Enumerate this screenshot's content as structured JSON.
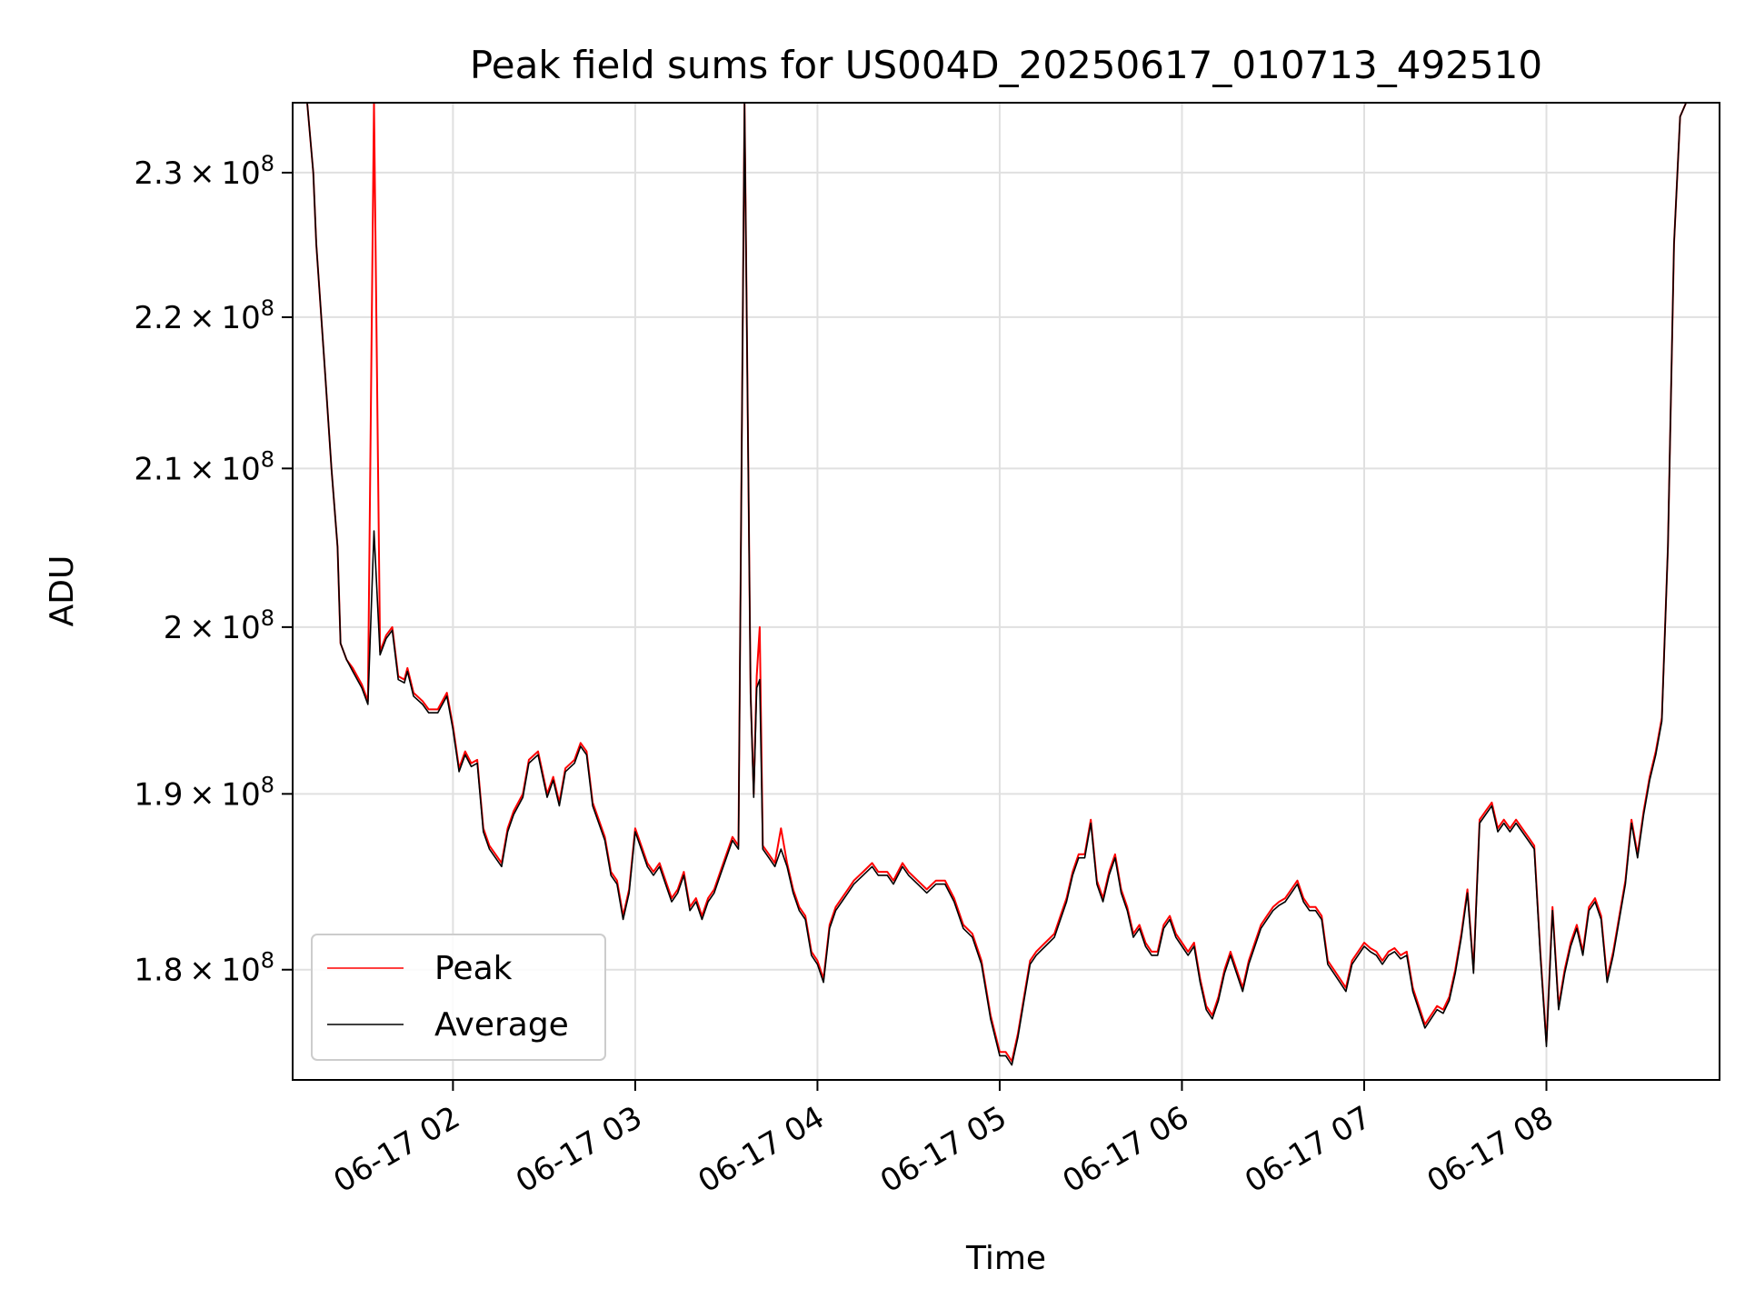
{
  "chart_data": {
    "type": "line",
    "title": "Peak field sums for US004D_20250617_010713_492510",
    "xlabel": "Time",
    "ylabel": "ADU",
    "x_range": [
      "2025-06-17T01:07:13",
      "2025-06-17T08:57:00"
    ],
    "y_scale": "log",
    "ylim": [
      174000000,
      235000000
    ],
    "grid": true,
    "legend_position": "lower-left",
    "x_ticks": [
      {
        "value": "2025-06-17T02:00",
        "label": "06-17 02"
      },
      {
        "value": "2025-06-17T03:00",
        "label": "06-17 03"
      },
      {
        "value": "2025-06-17T04:00",
        "label": "06-17 04"
      },
      {
        "value": "2025-06-17T05:00",
        "label": "06-17 05"
      },
      {
        "value": "2025-06-17T06:00",
        "label": "06-17 06"
      },
      {
        "value": "2025-06-17T07:00",
        "label": "06-17 07"
      },
      {
        "value": "2025-06-17T08:00",
        "label": "06-17 08"
      }
    ],
    "y_ticks": [
      {
        "value": 180000000,
        "mant": "1.8",
        "exp": "8"
      },
      {
        "value": 190000000,
        "mant": "1.9",
        "exp": "8"
      },
      {
        "value": 200000000,
        "mant": "2",
        "exp": "8"
      },
      {
        "value": 210000000,
        "mant": "2.1",
        "exp": "8"
      },
      {
        "value": 220000000,
        "mant": "2.2",
        "exp": "8"
      },
      {
        "value": 230000000,
        "mant": "2.3",
        "exp": "8"
      }
    ],
    "series": [
      {
        "name": "Peak",
        "color": "#ff0000"
      },
      {
        "name": "Average",
        "color": "#000000"
      }
    ],
    "x": [
      "01:07",
      "01:10",
      "01:12",
      "01:14",
      "01:15",
      "01:18",
      "01:20",
      "01:22",
      "01:23",
      "01:25",
      "01:27",
      "01:30",
      "01:32",
      "01:34",
      "01:36",
      "01:38",
      "01:40",
      "01:42",
      "01:44",
      "01:45",
      "01:47",
      "01:50",
      "01:52",
      "01:55",
      "01:58",
      "02:00",
      "02:02",
      "02:04",
      "02:06",
      "02:08",
      "02:10",
      "02:12",
      "02:14",
      "02:16",
      "02:18",
      "02:20",
      "02:23",
      "02:25",
      "02:28",
      "02:31",
      "02:33",
      "02:35",
      "02:37",
      "02:40",
      "02:42",
      "02:44",
      "02:46",
      "02:48",
      "02:50",
      "02:52",
      "02:54",
      "02:56",
      "02:58",
      "03:00",
      "03:02",
      "03:04",
      "03:06",
      "03:08",
      "03:10",
      "03:12",
      "03:14",
      "03:16",
      "03:18",
      "03:20",
      "03:22",
      "03:24",
      "03:26",
      "03:28",
      "03:30",
      "03:32",
      "03:34",
      "03:36",
      "03:38",
      "03:39",
      "03:40",
      "03:41",
      "03:42",
      "03:44",
      "03:46",
      "03:48",
      "03:50",
      "03:52",
      "03:54",
      "03:56",
      "03:58",
      "04:00",
      "04:02",
      "04:04",
      "04:06",
      "04:08",
      "04:10",
      "04:12",
      "04:15",
      "04:18",
      "04:20",
      "04:23",
      "04:25",
      "04:28",
      "04:30",
      "04:33",
      "04:36",
      "04:39",
      "04:42",
      "04:45",
      "04:48",
      "04:51",
      "04:54",
      "04:57",
      "05:00",
      "05:02",
      "05:04",
      "05:06",
      "05:08",
      "05:10",
      "05:12",
      "05:15",
      "05:18",
      "05:20",
      "05:22",
      "05:24",
      "05:26",
      "05:28",
      "05:30",
      "05:32",
      "05:34",
      "05:36",
      "05:38",
      "05:40",
      "05:42",
      "05:44",
      "05:46",
      "05:48",
      "05:50",
      "05:52",
      "05:54",
      "05:56",
      "05:58",
      "06:00",
      "06:02",
      "06:04",
      "06:06",
      "06:08",
      "06:10",
      "06:12",
      "06:14",
      "06:16",
      "06:18",
      "06:20",
      "06:22",
      "06:24",
      "06:26",
      "06:28",
      "06:30",
      "06:32",
      "06:34",
      "06:36",
      "06:38",
      "06:40",
      "06:42",
      "06:44",
      "06:46",
      "06:48",
      "06:50",
      "06:52",
      "06:54",
      "06:56",
      "06:58",
      "07:00",
      "07:02",
      "07:04",
      "07:06",
      "07:08",
      "07:10",
      "07:12",
      "07:14",
      "07:16",
      "07:18",
      "07:20",
      "07:22",
      "07:24",
      "07:26",
      "07:28",
      "07:30",
      "07:32",
      "07:34",
      "07:36",
      "07:38",
      "07:40",
      "07:42",
      "07:44",
      "07:46",
      "07:48",
      "07:50",
      "07:52",
      "07:54",
      "07:56",
      "07:58",
      "08:00",
      "08:02",
      "08:04",
      "08:06",
      "08:08",
      "08:10",
      "08:12",
      "08:14",
      "08:16",
      "08:18",
      "08:20",
      "08:22",
      "08:24",
      "08:26",
      "08:28",
      "08:30",
      "08:32",
      "08:34",
      "08:36",
      "08:38",
      "08:40",
      "08:42",
      "08:44",
      "08:46",
      "08:48",
      "08:50",
      "08:52",
      "08:54",
      "08:56"
    ],
    "peak": [
      235000000,
      235000000,
      235000000,
      230000000,
      225000000,
      216000000,
      210000000,
      205000000,
      199000000,
      198000000,
      197500000,
      196500000,
      195500000,
      235000000,
      198500000,
      199500000,
      200000000,
      197000000,
      196800000,
      197500000,
      196000000,
      195500000,
      195000000,
      195000000,
      196000000,
      194000000,
      191500000,
      192500000,
      191800000,
      192000000,
      188000000,
      187000000,
      186500000,
      186000000,
      188000000,
      189000000,
      190000000,
      192000000,
      192500000,
      190000000,
      191000000,
      189500000,
      191500000,
      192000000,
      193000000,
      192500000,
      189500000,
      188500000,
      187500000,
      185500000,
      185000000,
      183000000,
      184500000,
      188000000,
      187000000,
      186000000,
      185500000,
      186000000,
      185000000,
      184000000,
      184500000,
      185500000,
      183500000,
      184000000,
      183000000,
      184000000,
      184500000,
      185500000,
      186500000,
      187500000,
      187000000,
      235000000,
      196000000,
      190000000,
      197000000,
      200000000,
      187000000,
      186500000,
      186000000,
      188000000,
      186000000,
      184500000,
      183500000,
      183000000,
      181000000,
      180500000,
      179500000,
      182500000,
      183500000,
      184000000,
      184500000,
      185000000,
      185500000,
      186000000,
      185500000,
      185500000,
      185000000,
      186000000,
      185500000,
      185000000,
      184500000,
      185000000,
      185000000,
      184000000,
      182500000,
      182000000,
      180500000,
      177500000,
      175500000,
      175500000,
      175000000,
      176500000,
      178500000,
      180500000,
      181000000,
      181500000,
      182000000,
      183000000,
      184000000,
      185500000,
      186500000,
      186500000,
      188500000,
      185000000,
      184000000,
      185500000,
      186500000,
      184500000,
      183500000,
      182000000,
      182500000,
      181500000,
      181000000,
      181000000,
      182500000,
      183000000,
      182000000,
      181500000,
      181000000,
      181500000,
      179500000,
      178000000,
      177500000,
      178500000,
      180000000,
      181000000,
      180000000,
      179000000,
      180500000,
      181500000,
      182500000,
      183000000,
      183500000,
      183800000,
      184000000,
      184500000,
      185000000,
      184000000,
      183500000,
      183500000,
      183000000,
      180500000,
      180000000,
      179500000,
      179000000,
      180500000,
      181000000,
      181500000,
      181200000,
      181000000,
      180500000,
      181000000,
      181200000,
      180800000,
      181000000,
      179000000,
      178000000,
      177000000,
      177500000,
      178000000,
      177800000,
      178500000,
      180000000,
      182000000,
      184500000,
      180000000,
      188500000,
      189000000,
      189500000,
      188000000,
      188500000,
      188000000,
      188500000,
      188000000,
      187500000,
      187000000,
      181000000,
      176000000,
      183500000,
      178000000,
      180000000,
      181500000,
      182500000,
      181000000,
      183500000,
      184000000,
      183000000,
      179500000,
      181000000,
      183000000,
      185000000,
      188500000,
      186500000,
      189000000,
      191000000,
      192500000,
      194500000,
      205000000,
      225000000,
      234000000,
      235000000,
      235000000
    ],
    "average": [
      235000000,
      235000000,
      235000000,
      230000000,
      225000000,
      216000000,
      210000000,
      205000000,
      199000000,
      198000000,
      197300000,
      196300000,
      195300000,
      206000000,
      198300000,
      199300000,
      199800000,
      196800000,
      196600000,
      197300000,
      195800000,
      195300000,
      194800000,
      194800000,
      195800000,
      193800000,
      191300000,
      192300000,
      191600000,
      191800000,
      187800000,
      186800000,
      186300000,
      185800000,
      187800000,
      188800000,
      189800000,
      191800000,
      192300000,
      189800000,
      190800000,
      189300000,
      191300000,
      191800000,
      192800000,
      192300000,
      189300000,
      188300000,
      187300000,
      185300000,
      184800000,
      182800000,
      184300000,
      187800000,
      186800000,
      185800000,
      185300000,
      185800000,
      184800000,
      183800000,
      184300000,
      185300000,
      183300000,
      183800000,
      182800000,
      183800000,
      184300000,
      185300000,
      186300000,
      187300000,
      186800000,
      235000000,
      195800000,
      189800000,
      196300000,
      196800000,
      186800000,
      186300000,
      185800000,
      186800000,
      185800000,
      184300000,
      183300000,
      182800000,
      180800000,
      180300000,
      179300000,
      182300000,
      183300000,
      183800000,
      184300000,
      184800000,
      185300000,
      185800000,
      185300000,
      185300000,
      184800000,
      185800000,
      185300000,
      184800000,
      184300000,
      184800000,
      184800000,
      183800000,
      182300000,
      181800000,
      180300000,
      177300000,
      175300000,
      175300000,
      174800000,
      176300000,
      178300000,
      180300000,
      180800000,
      181300000,
      181800000,
      182800000,
      183800000,
      185300000,
      186300000,
      186300000,
      188300000,
      184800000,
      183800000,
      185300000,
      186300000,
      184300000,
      183300000,
      181800000,
      182300000,
      181300000,
      180800000,
      180800000,
      182300000,
      182800000,
      181800000,
      181300000,
      180800000,
      181300000,
      179300000,
      177800000,
      177300000,
      178300000,
      179800000,
      180800000,
      179800000,
      178800000,
      180300000,
      181300000,
      182300000,
      182800000,
      183300000,
      183600000,
      183800000,
      184300000,
      184800000,
      183800000,
      183300000,
      183300000,
      182800000,
      180300000,
      179800000,
      179300000,
      178800000,
      180300000,
      180800000,
      181300000,
      181000000,
      180800000,
      180300000,
      180800000,
      181000000,
      180600000,
      180800000,
      178800000,
      177800000,
      176800000,
      177300000,
      177800000,
      177600000,
      178300000,
      179800000,
      181800000,
      184300000,
      179800000,
      188300000,
      188800000,
      189300000,
      187800000,
      188300000,
      187800000,
      188300000,
      187800000,
      187300000,
      186800000,
      180800000,
      175800000,
      183300000,
      177800000,
      179800000,
      181300000,
      182300000,
      180800000,
      183300000,
      183800000,
      182800000,
      179300000,
      180800000,
      182800000,
      184800000,
      188300000,
      186300000,
      188800000,
      190800000,
      192300000,
      194300000,
      205000000,
      225000000,
      234000000,
      235000000,
      235000000
    ]
  }
}
